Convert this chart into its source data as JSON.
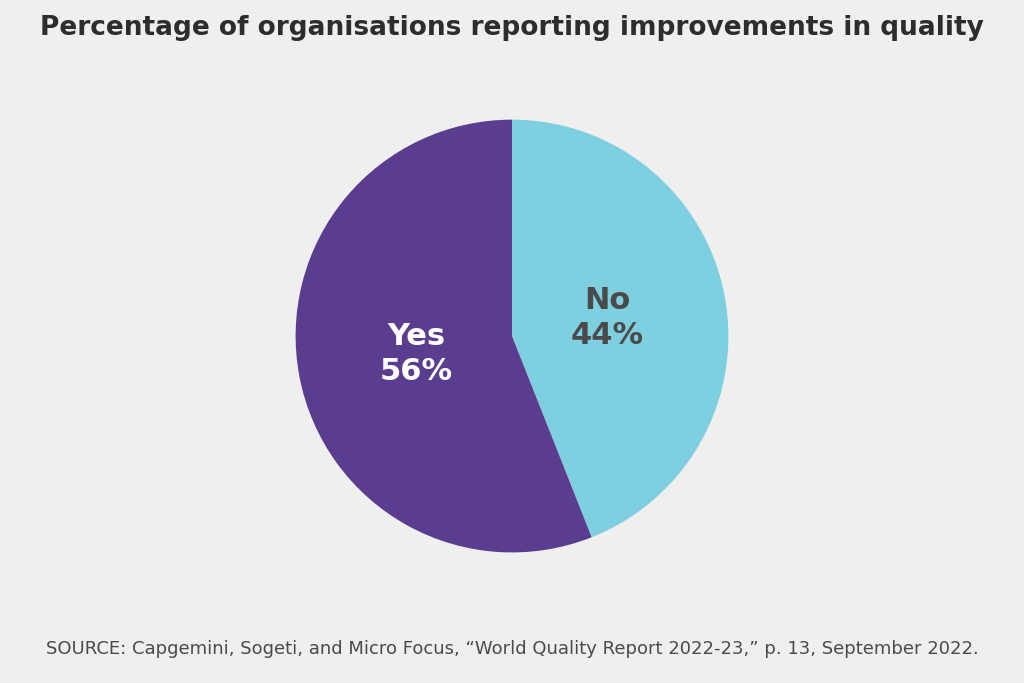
{
  "title": "Percentage of organisations reporting improvements in quality",
  "slices": [
    44,
    56
  ],
  "labels": [
    "No",
    "Yes"
  ],
  "colors": [
    "#7ecfe0",
    "#5b3d8f"
  ],
  "label_texts": [
    "No",
    "Yes"
  ],
  "label_colors": [
    "#4a4a4a",
    "#ffffff"
  ],
  "pct_values": [
    "44%",
    "56%"
  ],
  "label_fontsize": 22,
  "pct_fontsize": 22,
  "title_fontsize": 19,
  "background_color": "#efefef",
  "source_text": "SOURCE: Capgemini, Sogeti, and Micro Focus, “World Quality Report 2022-23,” p. 13, September 2022.",
  "source_fontsize": 13,
  "startangle": 90
}
